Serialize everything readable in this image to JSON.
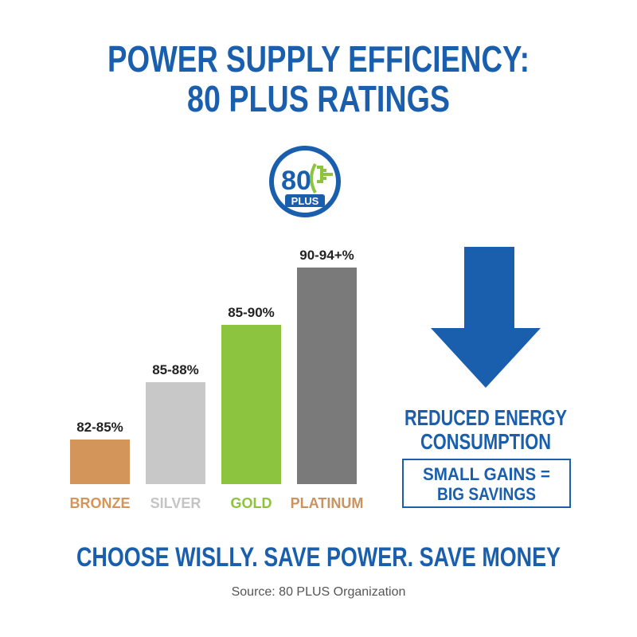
{
  "title": [
    "POWER SUPPLY EFFICIENCY:",
    "80 PLUS RATINGS"
  ],
  "logo": {
    "number": "80",
    "label": "PLUS"
  },
  "tiers": [
    {
      "name": "BRONZE",
      "range": "82-85%",
      "color": "#d4955a",
      "label_color": "#d4955a"
    },
    {
      "name": "SILVER",
      "range": "85-88%",
      "color": "#c8c8c8",
      "label_color": "#c4c4c4"
    },
    {
      "name": "GOLD",
      "range": "85-90%",
      "color": "#8cc43f",
      "label_color": "#8cc43f"
    },
    {
      "name": "PLATINUM",
      "range": "90-94+%",
      "color": "#7a7a7a",
      "label_color": "#c9925f"
    }
  ],
  "callout": {
    "heading": [
      "REDUCED ENERGY",
      "CONSUMPTION"
    ],
    "box": [
      "SMALL GAINS =",
      "BIG SAVINGS"
    ]
  },
  "tagline": "CHOOSE WISLLY. SAVE POWER. SAVE MONEY",
  "source": "Source: 80 PLUS Organization"
}
